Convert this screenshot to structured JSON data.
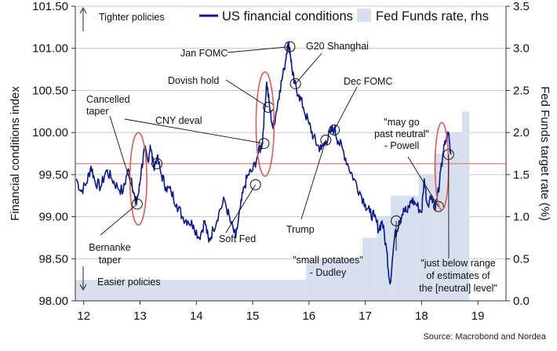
{
  "chart_data": {
    "type": "line",
    "title": "",
    "xlabel": "",
    "ylabel": "Financial conditions index",
    "y2label": "Fed Funds target rate (%)",
    "ylim": [
      98.0,
      101.5
    ],
    "y2lim": [
      0.0,
      3.5
    ],
    "xlim": [
      11.85,
      19.5
    ],
    "x_ticks": [
      "12",
      "13",
      "14",
      "15",
      "16",
      "17",
      "18",
      "19"
    ],
    "y_ticks": [
      "98.00",
      "98.50",
      "99.00",
      "99.50",
      "100.00",
      "100.50",
      "101.00",
      "101.50"
    ],
    "y2_ticks": [
      "0.0",
      "0.5",
      "1.0",
      "1.5",
      "2.0",
      "2.5",
      "3.0",
      "3.5"
    ],
    "reference_line": 99.63,
    "series": [
      {
        "name": "US financial conditions",
        "axis": "left",
        "color": "#0a1a8c",
        "points": [
          [
            11.87,
            99.45
          ],
          [
            11.95,
            99.3
          ],
          [
            12.05,
            99.4
          ],
          [
            12.13,
            99.6
          ],
          [
            12.2,
            99.42
          ],
          [
            12.3,
            99.35
          ],
          [
            12.4,
            99.55
          ],
          [
            12.5,
            99.45
          ],
          [
            12.6,
            99.35
          ],
          [
            12.7,
            99.3
          ],
          [
            12.78,
            99.55
          ],
          [
            12.85,
            99.45
          ],
          [
            12.92,
            99.15
          ],
          [
            12.98,
            99.3
          ],
          [
            13.02,
            99.55
          ],
          [
            13.08,
            99.8
          ],
          [
            13.14,
            99.65
          ],
          [
            13.18,
            99.85
          ],
          [
            13.24,
            99.6
          ],
          [
            13.3,
            99.7
          ],
          [
            13.38,
            99.5
          ],
          [
            13.46,
            99.35
          ],
          [
            13.55,
            99.3
          ],
          [
            13.65,
            99.15
          ],
          [
            13.75,
            99.0
          ],
          [
            13.85,
            98.95
          ],
          [
            13.95,
            98.9
          ],
          [
            14.05,
            98.75
          ],
          [
            14.15,
            98.95
          ],
          [
            14.22,
            98.7
          ],
          [
            14.3,
            98.85
          ],
          [
            14.4,
            99.05
          ],
          [
            14.5,
            99.2
          ],
          [
            14.6,
            98.95
          ],
          [
            14.7,
            98.75
          ],
          [
            14.78,
            99.1
          ],
          [
            14.85,
            99.35
          ],
          [
            14.92,
            99.5
          ],
          [
            15.0,
            99.55
          ],
          [
            15.1,
            99.75
          ],
          [
            15.17,
            99.87
          ],
          [
            15.21,
            100.25
          ],
          [
            15.25,
            100.6
          ],
          [
            15.3,
            100.3
          ],
          [
            15.36,
            100.05
          ],
          [
            15.42,
            100.25
          ],
          [
            15.48,
            100.5
          ],
          [
            15.56,
            100.75
          ],
          [
            15.62,
            101.05
          ],
          [
            15.66,
            101.0
          ],
          [
            15.7,
            100.75
          ],
          [
            15.74,
            100.58
          ],
          [
            15.82,
            100.45
          ],
          [
            15.9,
            100.3
          ],
          [
            16.0,
            100.1
          ],
          [
            16.08,
            99.95
          ],
          [
            16.15,
            99.85
          ],
          [
            16.22,
            99.8
          ],
          [
            16.3,
            99.9
          ],
          [
            16.38,
            100.0
          ],
          [
            16.45,
            100.05
          ],
          [
            16.52,
            99.9
          ],
          [
            16.6,
            99.8
          ],
          [
            16.7,
            99.6
          ],
          [
            16.8,
            99.45
          ],
          [
            16.9,
            99.3
          ],
          [
            17.0,
            99.15
          ],
          [
            17.08,
            99.05
          ],
          [
            17.16,
            99.0
          ],
          [
            17.24,
            98.85
          ],
          [
            17.3,
            98.95
          ],
          [
            17.38,
            98.6
          ],
          [
            17.44,
            98.2
          ],
          [
            17.52,
            98.75
          ],
          [
            17.6,
            98.95
          ],
          [
            17.68,
            99.1
          ],
          [
            17.75,
            99.05
          ],
          [
            17.82,
            99.2
          ],
          [
            17.9,
            99.15
          ],
          [
            18.0,
            99.05
          ],
          [
            18.05,
            99.45
          ],
          [
            18.1,
            99.15
          ],
          [
            18.18,
            99.25
          ],
          [
            18.25,
            99.12
          ],
          [
            18.32,
            99.4
          ],
          [
            18.38,
            99.75
          ],
          [
            18.43,
            99.9
          ],
          [
            18.48,
            100.0
          ],
          [
            18.52,
            99.74
          ]
        ]
      },
      {
        "name": "Fed Funds rate, rhs",
        "axis": "right",
        "color": "#d6e0ee",
        "steps": [
          [
            11.85,
            0.25
          ],
          [
            15.95,
            0.5
          ],
          [
            16.95,
            0.75
          ],
          [
            17.2,
            1.0
          ],
          [
            17.45,
            1.25
          ],
          [
            17.95,
            1.5
          ],
          [
            18.22,
            1.75
          ],
          [
            18.45,
            2.0
          ],
          [
            18.72,
            2.25
          ],
          [
            18.85,
            2.25
          ]
        ]
      }
    ],
    "markers": [
      {
        "x": 12.95,
        "y": 99.15
      },
      {
        "x": 13.3,
        "y": 99.63
      },
      {
        "x": 15.05,
        "y": 99.38
      },
      {
        "x": 15.2,
        "y": 99.87
      },
      {
        "x": 15.28,
        "y": 100.3
      },
      {
        "x": 15.66,
        "y": 101.02
      },
      {
        "x": 15.76,
        "y": 100.58
      },
      {
        "x": 16.3,
        "y": 99.91
      },
      {
        "x": 16.45,
        "y": 100.03
      },
      {
        "x": 17.55,
        "y": 98.95
      },
      {
        "x": 18.3,
        "y": 99.12
      },
      {
        "x": 18.48,
        "y": 99.74
      }
    ],
    "ellipses": [
      {
        "cx": 12.97,
        "cy": 99.45,
        "rx": 0.15,
        "ry": 0.55
      },
      {
        "cx": 15.22,
        "cy": 100.1,
        "rx": 0.16,
        "ry": 0.62
      },
      {
        "cx": 18.36,
        "cy": 99.6,
        "rx": 0.12,
        "ry": 0.52
      }
    ],
    "annotations": [
      {
        "text": "Tighter policies"
      },
      {
        "text": "Easier policies"
      },
      {
        "text": "Cancelled taper"
      },
      {
        "text": "Bernanke taper"
      },
      {
        "text": "CNY deval"
      },
      {
        "text": "Soft Fed"
      },
      {
        "text": "Dovish hold"
      },
      {
        "text": "Jan FOMC"
      },
      {
        "text": "G20 Shanghai"
      },
      {
        "text": "Dec FOMC"
      },
      {
        "text": "Trump"
      },
      {
        "text": "\"small potatoes\" - Dudley"
      },
      {
        "text": "\"may go past neutral\" - Powell"
      },
      {
        "text": "\"just below range of estimates of the [neutral] level\""
      }
    ],
    "legend": {
      "position": "top-center"
    },
    "source": "Source: Macrobond and Nordea"
  }
}
